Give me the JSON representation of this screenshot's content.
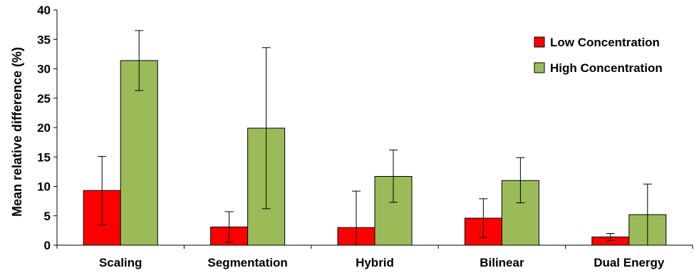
{
  "chart_data": {
    "type": "bar",
    "title": "",
    "xlabel": "",
    "ylabel": "Mean relative difference  (%)",
    "ylim": [
      0,
      40
    ],
    "yticks": [
      0,
      5,
      10,
      15,
      20,
      25,
      30,
      35,
      40
    ],
    "categories": [
      "Scaling",
      "Segmentation",
      "Hybrid",
      "Bilinear",
      "Dual Energy"
    ],
    "series": [
      {
        "name": "Low Concentration",
        "color": "#ff0000",
        "values": [
          9.3,
          3.1,
          3.0,
          4.6,
          1.4
        ],
        "error_low": [
          3.5,
          0.5,
          0.0,
          1.3,
          0.8
        ],
        "error_high": [
          15.1,
          5.7,
          9.2,
          7.9,
          2.0
        ]
      },
      {
        "name": "High Concentration",
        "color": "#9bbb59",
        "values": [
          31.4,
          19.9,
          11.7,
          11.0,
          5.2
        ],
        "error_low": [
          26.3,
          6.2,
          7.3,
          7.2,
          0.0
        ],
        "error_high": [
          36.5,
          33.6,
          16.2,
          14.9,
          10.4
        ]
      }
    ],
    "legend_position": "top-right",
    "grid": false
  }
}
